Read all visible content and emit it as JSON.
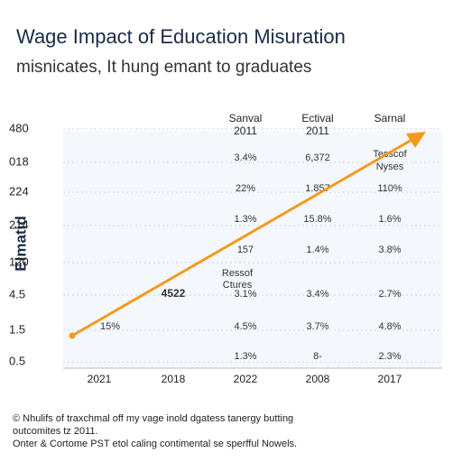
{
  "header": {
    "title": "Wage Impact of Education Misuration",
    "subtitle": "misnicates, It hung emant to graduates"
  },
  "axis": {
    "y_title": "Elmatid",
    "y_labels": [
      "480",
      "018",
      "224",
      "214",
      "120",
      "4.5",
      "1.5",
      "0.5"
    ],
    "x_labels": [
      "2021",
      "2018",
      "2022",
      "2008",
      "2017"
    ]
  },
  "table": {
    "headers": [
      [
        "Sanval",
        "2011"
      ],
      [
        "Ectival",
        "2011"
      ],
      [
        "Sarnal"
      ]
    ],
    "rows": [
      [
        "3.4%",
        "6,372",
        "Tesscof Nyses"
      ],
      [
        "22%",
        "1.857",
        "110%"
      ],
      [
        "1.3%",
        "15.8%",
        "1.6%"
      ],
      [
        "157",
        "1.4%",
        "3.8%"
      ],
      [
        "3.1%",
        "3.4%",
        "2.7%"
      ],
      [
        "4.5%",
        "3.7%",
        "4.8%"
      ],
      [
        "1.3%",
        "8-",
        "2.3%"
      ]
    ]
  },
  "annotations": {
    "ressof": [
      "Ressof",
      "Ctures"
    ],
    "bold_value": "4522",
    "start_value": "15%"
  },
  "footnotes": [
    "© Nhulifs of traxchmal off my vage inold dgatess tanergy butting",
    "outcomites tz 2011.",
    "Onter & Cortome PST etol caling contimental se sperfful Nowels."
  ]
}
